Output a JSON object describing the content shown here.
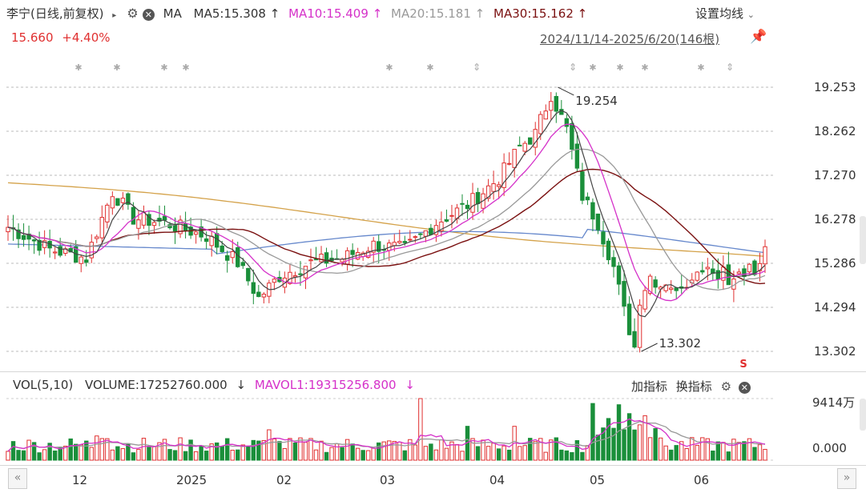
{
  "header": {
    "title": "李宁(日线,前复权)",
    "ma_label": "MA",
    "ma5": "MA5:15.308",
    "ma10": "MA10:15.409",
    "ma20": "MA20:15.181",
    "ma30": "MA30:15.162",
    "arrow_up": "↑",
    "settings_label": "设置均线",
    "price": "15.660",
    "change": "+4.40%",
    "range": "2024/11/14-2025/6/20(146根)"
  },
  "colors": {
    "up": "#e03030",
    "down": "#1a8f3a",
    "ma5": "#444444",
    "ma10": "#d531c9",
    "ma20": "#999999",
    "ma30": "#7a1010",
    "ma_long1": "#d4a24a",
    "ma_long2": "#6688cc"
  },
  "volume_header": {
    "vol_label": "VOL(5,10)",
    "volume": "VOLUME:17252760.000",
    "down_arrow": "↓",
    "mavol1": "MAVOL1:19315256.800",
    "add_indicator": "加指标",
    "change_indicator": "换指标"
  },
  "chart_data": {
    "type": "candlestick",
    "y_ticks": [
      "19.253",
      "18.262",
      "17.270",
      "16.278",
      "15.286",
      "14.294",
      "13.302"
    ],
    "ylim": [
      13.302,
      19.253
    ],
    "x_labels": [
      "12",
      "2025",
      "02",
      "03",
      "04",
      "05",
      "06"
    ],
    "annotations": [
      {
        "text": "19.254",
        "value": 19.254
      },
      {
        "text": "13.302",
        "value": 13.302
      }
    ],
    "volume_ticks": [
      "9414万",
      "0.000"
    ],
    "series": [
      {
        "name": "MA5",
        "value": 15.308
      },
      {
        "name": "MA10",
        "value": 15.409
      },
      {
        "name": "MA20",
        "value": 15.181
      },
      {
        "name": "MA30",
        "value": 15.162
      }
    ],
    "last_close": 15.66,
    "last_volume": 17252760,
    "last_mavol1": 19315256.8
  }
}
